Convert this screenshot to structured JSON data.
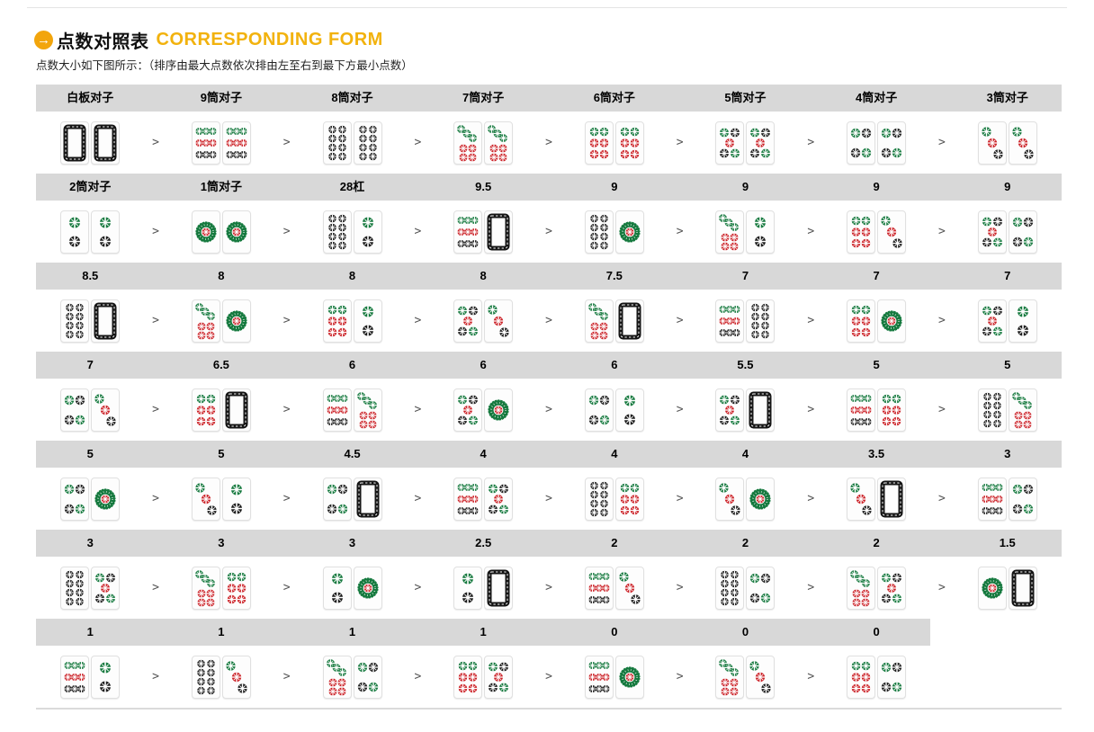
{
  "page": {
    "title_zh": "点数对照表",
    "title_en": "CORRESPONDING FORM",
    "title_icon": "arrow-right-circle-icon",
    "subtitle": "点数大小如下图所示：（排序由最大点数依次排由左至右到最下方最小点数）",
    "separator": ">",
    "arrow_glyph": "→"
  },
  "colors": {
    "accent_orange": "#f2a50c",
    "title_en_orange": "#f2b20d",
    "header_bar_gray": "#d8d8d8",
    "tile_green": "#15793e",
    "tile_red": "#cb2026",
    "tile_black": "#1c1c1c"
  },
  "table": {
    "rows": [
      {
        "labels": [
          "白板对子",
          "9筒对子",
          "8筒对子",
          "7筒对子",
          "6筒对子",
          "5筒对子",
          "4筒对子",
          "3筒对子"
        ],
        "pairs": [
          [
            "bai",
            "bai"
          ],
          [
            "9",
            "9"
          ],
          [
            "8",
            "8"
          ],
          [
            "7",
            "7"
          ],
          [
            "6",
            "6"
          ],
          [
            "5",
            "5"
          ],
          [
            "4",
            "4"
          ],
          [
            "3",
            "3"
          ]
        ]
      },
      {
        "labels": [
          "2筒对子",
          "1筒对子",
          "28杠",
          "9.5",
          "9",
          "9",
          "9",
          "9"
        ],
        "pairs": [
          [
            "2",
            "2"
          ],
          [
            "1",
            "1"
          ],
          [
            "8",
            "2"
          ],
          [
            "9",
            "bai"
          ],
          [
            "8",
            "1"
          ],
          [
            "7",
            "2"
          ],
          [
            "6",
            "3"
          ],
          [
            "5",
            "4"
          ]
        ]
      },
      {
        "labels": [
          "8.5",
          "8",
          "8",
          "8",
          "7.5",
          "7",
          "7",
          "7"
        ],
        "pairs": [
          [
            "8",
            "bai"
          ],
          [
            "7",
            "1"
          ],
          [
            "6",
            "2"
          ],
          [
            "5",
            "3"
          ],
          [
            "7",
            "bai"
          ],
          [
            "9",
            "8"
          ],
          [
            "6",
            "1"
          ],
          [
            "5",
            "2"
          ]
        ]
      },
      {
        "labels": [
          "7",
          "6.5",
          "6",
          "6",
          "6",
          "5.5",
          "5",
          "5"
        ],
        "pairs": [
          [
            "4",
            "3"
          ],
          [
            "6",
            "bai"
          ],
          [
            "9",
            "7"
          ],
          [
            "5",
            "1"
          ],
          [
            "4",
            "2"
          ],
          [
            "5",
            "bai"
          ],
          [
            "9",
            "6"
          ],
          [
            "8",
            "7"
          ]
        ]
      },
      {
        "labels": [
          "5",
          "5",
          "4.5",
          "4",
          "4",
          "4",
          "3.5",
          "3"
        ],
        "pairs": [
          [
            "4",
            "1"
          ],
          [
            "3",
            "2"
          ],
          [
            "4",
            "bai"
          ],
          [
            "9",
            "5"
          ],
          [
            "8",
            "6"
          ],
          [
            "3",
            "1"
          ],
          [
            "3",
            "bai"
          ],
          [
            "9",
            "4"
          ]
        ]
      },
      {
        "labels": [
          "3",
          "3",
          "3",
          "2.5",
          "2",
          "2",
          "2",
          "1.5"
        ],
        "pairs": [
          [
            "8",
            "5"
          ],
          [
            "7",
            "6"
          ],
          [
            "2",
            "1"
          ],
          [
            "2",
            "bai"
          ],
          [
            "9",
            "3"
          ],
          [
            "8",
            "4"
          ],
          [
            "7",
            "5"
          ],
          [
            "1",
            "bai"
          ]
        ]
      },
      {
        "labels": [
          "1",
          "1",
          "1",
          "1",
          "0",
          "0",
          "0"
        ],
        "pairs": [
          [
            "9",
            "2"
          ],
          [
            "8",
            "3"
          ],
          [
            "7",
            "4"
          ],
          [
            "6",
            "5"
          ],
          [
            "9",
            "1"
          ],
          [
            "7",
            "3"
          ],
          [
            "6",
            "4"
          ]
        ]
      }
    ]
  }
}
